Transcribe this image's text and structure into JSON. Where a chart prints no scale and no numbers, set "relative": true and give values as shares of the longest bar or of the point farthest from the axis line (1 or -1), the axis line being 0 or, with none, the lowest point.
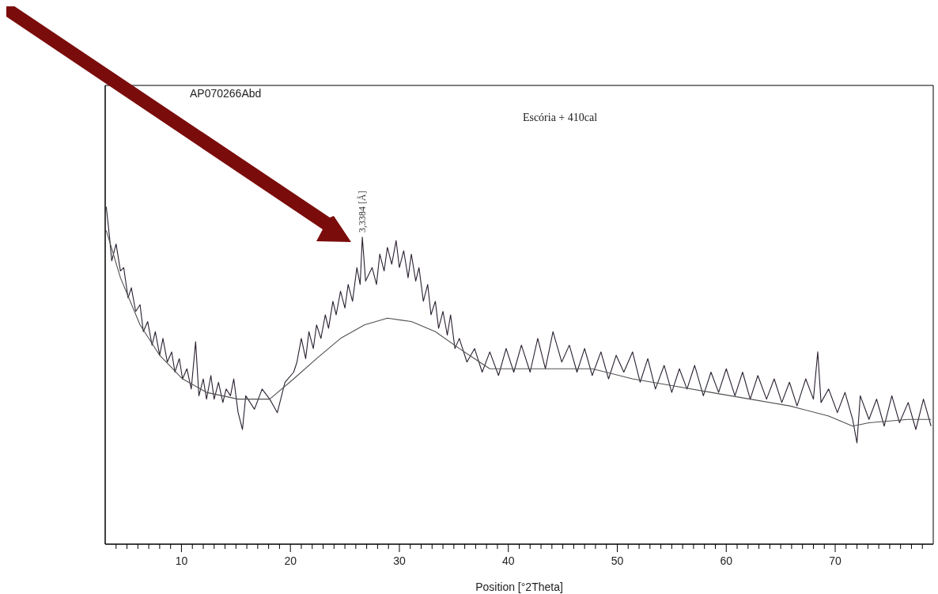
{
  "chart_data": {
    "type": "line",
    "title": "Escória + 410cal",
    "xlabel": "Position [°2Theta]",
    "relative": true,
    "legend": false,
    "grid": false,
    "marker": "none",
    "line_style": "solid",
    "xlim": [
      3,
      79
    ],
    "xticks": [
      {
        "value": 4,
        "label": null
      },
      {
        "value": 5,
        "label": null
      },
      {
        "value": 6,
        "label": null
      },
      {
        "value": 7,
        "label": null
      },
      {
        "value": 8,
        "label": null
      },
      {
        "value": 9,
        "label": null
      },
      10,
      {
        "value": 11,
        "label": null
      },
      {
        "value": 12,
        "label": null
      },
      {
        "value": 13,
        "label": null
      },
      {
        "value": 14,
        "label": null
      },
      {
        "value": 15,
        "label": null
      },
      {
        "value": 16,
        "label": null
      },
      {
        "value": 17,
        "label": null
      },
      {
        "value": 18,
        "label": null
      },
      {
        "value": 19,
        "label": null
      },
      20,
      {
        "value": 21,
        "label": null
      },
      {
        "value": 22,
        "label": null
      },
      {
        "value": 23,
        "label": null
      },
      {
        "value": 24,
        "label": null
      },
      {
        "value": 25,
        "label": null
      },
      {
        "value": 26,
        "label": null
      },
      {
        "value": 27,
        "label": null
      },
      {
        "value": 28,
        "label": null
      },
      {
        "value": 29,
        "label": null
      },
      30,
      {
        "value": 31,
        "label": null
      },
      {
        "value": 32,
        "label": null
      },
      {
        "value": 33,
        "label": null
      },
      {
        "value": 34,
        "label": null
      },
      {
        "value": 35,
        "label": null
      },
      {
        "value": 36,
        "label": null
      },
      {
        "value": 37,
        "label": null
      },
      {
        "value": 38,
        "label": null
      },
      {
        "value": 39,
        "label": null
      },
      40,
      {
        "value": 41,
        "label": null
      },
      {
        "value": 42,
        "label": null
      },
      {
        "value": 43,
        "label": null
      },
      {
        "value": 44,
        "label": null
      },
      {
        "value": 45,
        "label": null
      },
      {
        "value": 46,
        "label": null
      },
      {
        "value": 47,
        "label": null
      },
      {
        "value": 48,
        "label": null
      },
      {
        "value": 49,
        "label": null
      },
      50,
      {
        "value": 51,
        "label": null
      },
      {
        "value": 52,
        "label": null
      },
      {
        "value": 53,
        "label": null
      },
      {
        "value": 54,
        "label": null
      },
      {
        "value": 55,
        "label": null
      },
      {
        "value": 56,
        "label": null
      },
      {
        "value": 57,
        "label": null
      },
      {
        "value": 58,
        "label": null
      },
      {
        "value": 59,
        "label": null
      },
      60,
      {
        "value": 61,
        "label": null
      },
      {
        "value": 62,
        "label": null
      },
      {
        "value": 63,
        "label": null
      },
      {
        "value": 64,
        "label": null
      },
      {
        "value": 65,
        "label": null
      },
      {
        "value": 66,
        "label": null
      },
      {
        "value": 67,
        "label": null
      },
      {
        "value": 68,
        "label": null
      },
      {
        "value": 69,
        "label": null
      },
      70,
      {
        "value": 71,
        "label": null
      },
      {
        "value": 72,
        "label": null
      },
      {
        "value": 73,
        "label": null
      },
      {
        "value": 74,
        "label": null
      },
      {
        "value": 75,
        "label": null
      },
      {
        "value": 76,
        "label": null
      },
      {
        "value": 77,
        "label": null
      },
      {
        "value": 78,
        "label": null
      }
    ],
    "annotations": [
      "AP070266Abd",
      {
        "text": "3,3384 [Å]",
        "x": 26.6,
        "y": 0.91
      }
    ],
    "series": [
      {
        "color": "#2a2030",
        "x": [
          3.1,
          3.4,
          3.6,
          4.0,
          4.4,
          4.7,
          5.1,
          5.4,
          5.8,
          6.2,
          6.5,
          6.9,
          7.3,
          7.6,
          8.0,
          8.3,
          8.7,
          9.1,
          9.4,
          9.8,
          10.1,
          10.5,
          10.9,
          11.3,
          11.6,
          12.0,
          12.3,
          12.7,
          13.0,
          13.4,
          13.8,
          14.1,
          14.5,
          14.8,
          15.2,
          15.6,
          15.9,
          16.7,
          17.4,
          18.1,
          18.8,
          19.5,
          20.3,
          20.6,
          21.0,
          21.4,
          21.7,
          22.1,
          22.4,
          22.8,
          23.2,
          23.5,
          23.9,
          24.2,
          24.6,
          25.0,
          25.3,
          25.7,
          26.1,
          26.4,
          26.6,
          26.9,
          27.5,
          27.9,
          28.2,
          28.6,
          28.9,
          29.3,
          29.7,
          30.0,
          30.4,
          30.8,
          31.1,
          31.5,
          31.8,
          32.2,
          32.6,
          32.9,
          33.3,
          33.6,
          34.0,
          34.4,
          34.7,
          35.1,
          35.5,
          36.2,
          36.9,
          37.6,
          38.3,
          39.1,
          39.8,
          40.5,
          41.2,
          42.0,
          42.7,
          43.4,
          44.1,
          44.9,
          45.6,
          46.3,
          47.0,
          47.7,
          48.5,
          49.2,
          49.9,
          50.6,
          51.4,
          52.1,
          52.8,
          53.5,
          54.3,
          55.0,
          55.7,
          56.4,
          57.1,
          57.9,
          58.6,
          59.3,
          60.0,
          60.8,
          61.5,
          62.2,
          62.9,
          63.7,
          64.4,
          65.1,
          65.8,
          66.5,
          67.3,
          68.0,
          68.4,
          68.7,
          69.4,
          70.2,
          70.9,
          71.6,
          72.0,
          72.3,
          73.1,
          73.8,
          74.5,
          75.2,
          75.9,
          76.7,
          77.4,
          78.1,
          78.8
        ],
        "values": [
          1.0,
          0.91,
          0.84,
          0.89,
          0.81,
          0.82,
          0.73,
          0.76,
          0.69,
          0.71,
          0.63,
          0.66,
          0.59,
          0.63,
          0.56,
          0.61,
          0.54,
          0.57,
          0.51,
          0.55,
          0.49,
          0.52,
          0.46,
          0.6,
          0.44,
          0.49,
          0.43,
          0.5,
          0.43,
          0.48,
          0.42,
          0.46,
          0.44,
          0.49,
          0.39,
          0.34,
          0.44,
          0.4,
          0.46,
          0.43,
          0.39,
          0.48,
          0.51,
          0.54,
          0.61,
          0.55,
          0.63,
          0.58,
          0.65,
          0.61,
          0.68,
          0.64,
          0.72,
          0.68,
          0.75,
          0.7,
          0.77,
          0.72,
          0.82,
          0.77,
          0.91,
          0.78,
          0.82,
          0.77,
          0.86,
          0.81,
          0.88,
          0.83,
          0.9,
          0.82,
          0.87,
          0.79,
          0.86,
          0.78,
          0.82,
          0.72,
          0.77,
          0.68,
          0.72,
          0.64,
          0.69,
          0.62,
          0.68,
          0.58,
          0.61,
          0.54,
          0.58,
          0.51,
          0.57,
          0.5,
          0.58,
          0.51,
          0.59,
          0.51,
          0.61,
          0.52,
          0.63,
          0.54,
          0.59,
          0.51,
          0.58,
          0.5,
          0.57,
          0.49,
          0.56,
          0.51,
          0.57,
          0.48,
          0.55,
          0.46,
          0.53,
          0.45,
          0.52,
          0.46,
          0.53,
          0.44,
          0.51,
          0.45,
          0.52,
          0.44,
          0.51,
          0.43,
          0.5,
          0.43,
          0.49,
          0.42,
          0.48,
          0.41,
          0.49,
          0.43,
          0.57,
          0.42,
          0.46,
          0.39,
          0.45,
          0.37,
          0.3,
          0.44,
          0.37,
          0.43,
          0.35,
          0.44,
          0.36,
          0.42,
          0.34,
          0.43,
          0.35
        ]
      },
      {
        "color": "#505050",
        "x": [
          3.1,
          4.4,
          6.2,
          8.0,
          10.1,
          12.3,
          15.2,
          18.1,
          20.3,
          22.4,
          24.6,
          26.8,
          28.9,
          31.1,
          33.3,
          35.5,
          36.9,
          38.3,
          40.5,
          44.1,
          47.7,
          51.4,
          55.0,
          58.6,
          62.2,
          65.8,
          69.4,
          71.6,
          73.1,
          76.7,
          78.8
        ],
        "values": [
          0.93,
          0.79,
          0.65,
          0.56,
          0.49,
          0.45,
          0.43,
          0.43,
          0.49,
          0.55,
          0.61,
          0.65,
          0.67,
          0.66,
          0.63,
          0.58,
          0.55,
          0.52,
          0.52,
          0.52,
          0.52,
          0.49,
          0.47,
          0.45,
          0.43,
          0.41,
          0.38,
          0.35,
          0.36,
          0.37,
          0.37
        ]
      }
    ]
  }
}
